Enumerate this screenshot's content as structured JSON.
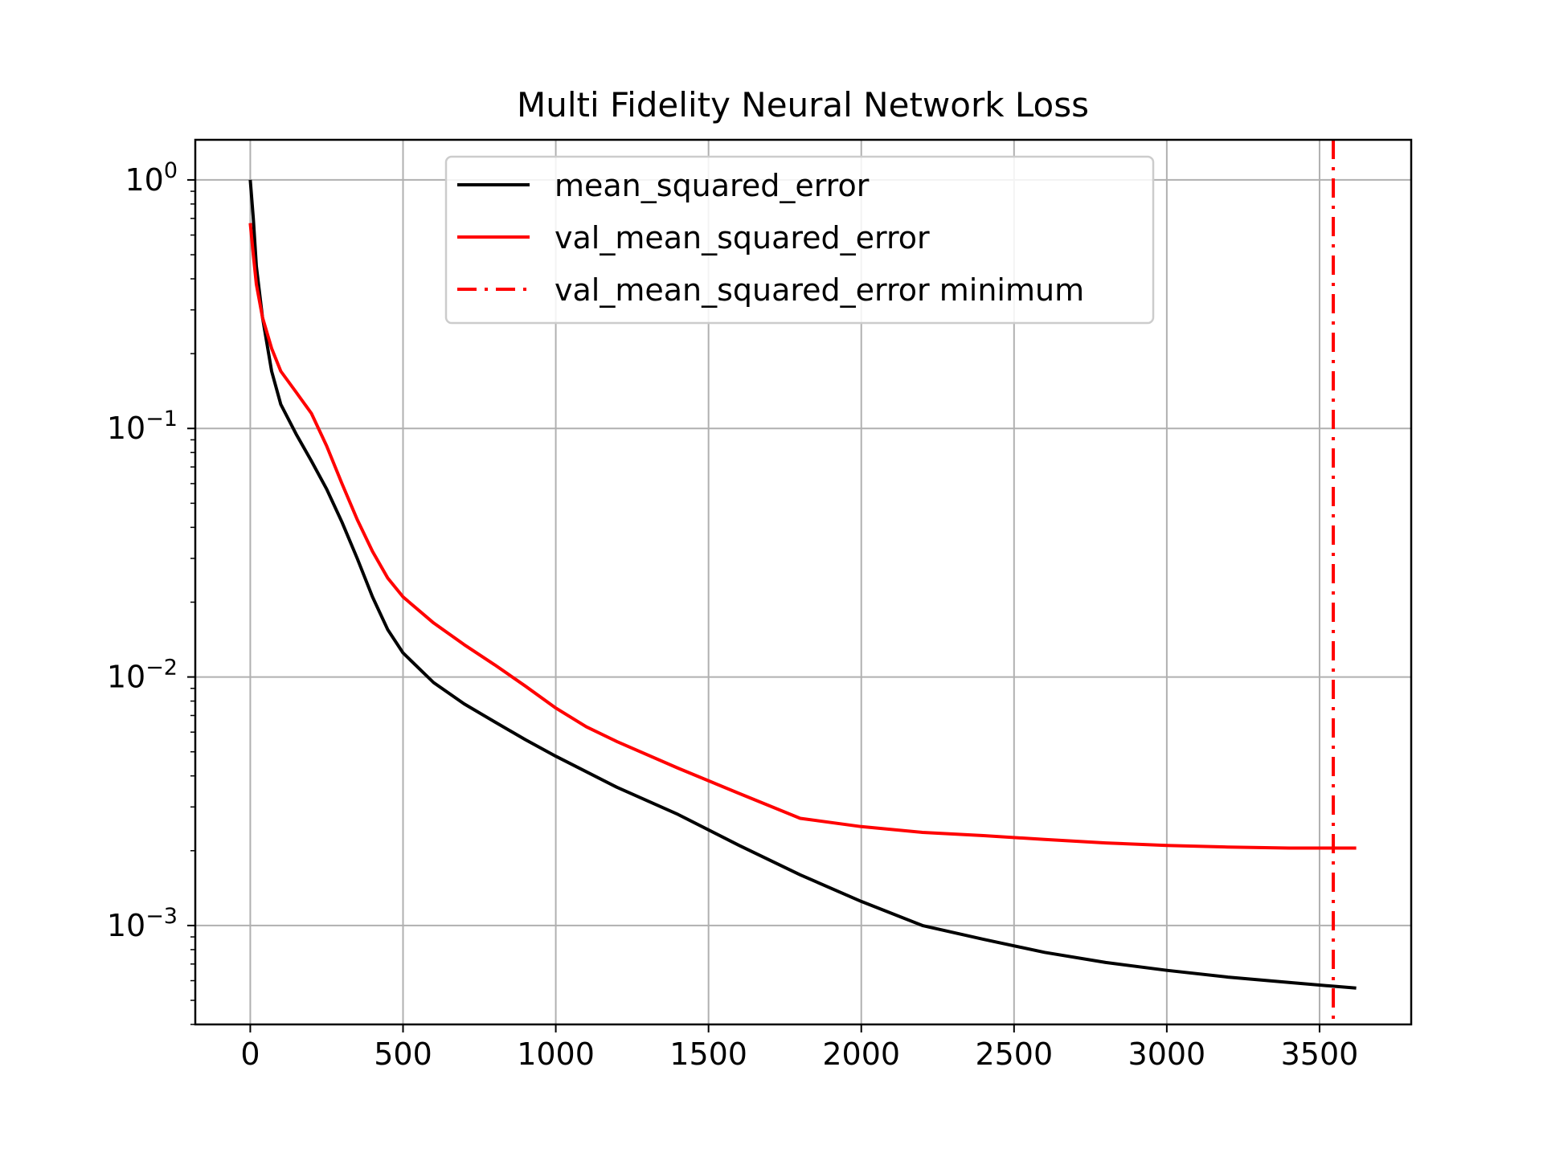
{
  "chart_data": {
    "type": "line",
    "title": "Multi Fidelity Neural Network Loss",
    "xlabel": "",
    "ylabel": "",
    "xlim": [
      -180,
      3800
    ],
    "ylim": [
      0.0004,
      1.45
    ],
    "yscale": "log",
    "grid": true,
    "legend_position": "top-center",
    "x_ticks": [
      0,
      500,
      1000,
      1500,
      2000,
      2500,
      3000,
      3500
    ],
    "x_tick_labels": [
      "0",
      "500",
      "1000",
      "1500",
      "2000",
      "2500",
      "3000",
      "3500"
    ],
    "y_ticks": [
      {
        "value": 1,
        "base": "10",
        "exp": "0"
      },
      {
        "value": 0.1,
        "base": "10",
        "exp": "−1"
      },
      {
        "value": 0.01,
        "base": "10",
        "exp": "−2"
      },
      {
        "value": 0.001,
        "base": "10",
        "exp": "−3"
      }
    ],
    "series": [
      {
        "name": "mean_squared_error",
        "color": "#000000",
        "style": "solid",
        "points": [
          [
            0,
            1.0
          ],
          [
            10,
            0.7
          ],
          [
            20,
            0.45
          ],
          [
            40,
            0.28
          ],
          [
            70,
            0.17
          ],
          [
            100,
            0.125
          ],
          [
            150,
            0.095
          ],
          [
            200,
            0.074
          ],
          [
            250,
            0.057
          ],
          [
            300,
            0.042
          ],
          [
            350,
            0.03
          ],
          [
            400,
            0.021
          ],
          [
            450,
            0.0155
          ],
          [
            500,
            0.0125
          ],
          [
            600,
            0.0095
          ],
          [
            700,
            0.0078
          ],
          [
            800,
            0.0066
          ],
          [
            900,
            0.0056
          ],
          [
            1000,
            0.0048
          ],
          [
            1200,
            0.0036
          ],
          [
            1400,
            0.0028
          ],
          [
            1600,
            0.0021
          ],
          [
            1800,
            0.0016
          ],
          [
            2000,
            0.00125
          ],
          [
            2200,
            0.001
          ],
          [
            2400,
            0.00088
          ],
          [
            2600,
            0.00078
          ],
          [
            2800,
            0.00071
          ],
          [
            3000,
            0.00066
          ],
          [
            3200,
            0.00062
          ],
          [
            3400,
            0.00059
          ],
          [
            3620,
            0.00056
          ]
        ]
      },
      {
        "name": "val_mean_squared_error",
        "color": "#ff0000",
        "style": "solid",
        "points": [
          [
            0,
            0.67
          ],
          [
            10,
            0.5
          ],
          [
            20,
            0.38
          ],
          [
            40,
            0.28
          ],
          [
            70,
            0.21
          ],
          [
            100,
            0.17
          ],
          [
            150,
            0.14
          ],
          [
            200,
            0.115
          ],
          [
            250,
            0.085
          ],
          [
            300,
            0.06
          ],
          [
            350,
            0.043
          ],
          [
            400,
            0.032
          ],
          [
            450,
            0.025
          ],
          [
            500,
            0.021
          ],
          [
            600,
            0.0165
          ],
          [
            700,
            0.0135
          ],
          [
            800,
            0.0112
          ],
          [
            900,
            0.0092
          ],
          [
            1000,
            0.0075
          ],
          [
            1100,
            0.0063
          ],
          [
            1200,
            0.0055
          ],
          [
            1400,
            0.0043
          ],
          [
            1600,
            0.0034
          ],
          [
            1800,
            0.0027
          ],
          [
            2000,
            0.0025
          ],
          [
            2200,
            0.00237
          ],
          [
            2400,
            0.0023
          ],
          [
            2600,
            0.00222
          ],
          [
            2800,
            0.00215
          ],
          [
            3000,
            0.0021
          ],
          [
            3200,
            0.00207
          ],
          [
            3400,
            0.00205
          ],
          [
            3620,
            0.00205
          ]
        ]
      }
    ],
    "vertical_lines": [
      {
        "name": "val_mean_squared_error minimum",
        "x": 3545,
        "color": "#ff0000",
        "style": "dashdot"
      }
    ]
  }
}
